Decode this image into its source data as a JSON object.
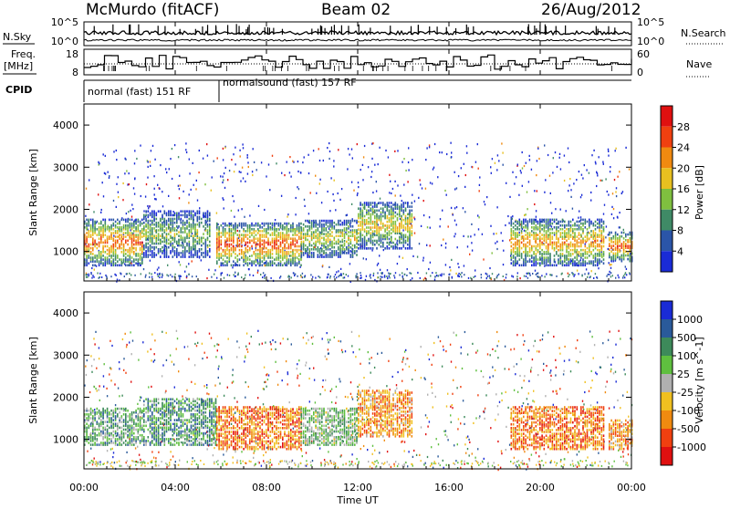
{
  "header": {
    "station": "McMurdo (fitACF)",
    "beam": "Beam 02",
    "date": "26/Aug/2012"
  },
  "top_panels": {
    "nsky_label": "N.Sky",
    "nsky_ticks": [
      "10^5",
      "10^0"
    ],
    "nsearch_label": "N.Search",
    "nsearch_ticks": [
      "10^5",
      "10^0"
    ],
    "freq_label_1": "Freq.",
    "freq_label_2": "[MHz]",
    "freq_ticks": [
      "18",
      "8"
    ],
    "nave_label": "Nave",
    "nave_ticks": [
      "60",
      "0"
    ],
    "cpid_label": "CPID",
    "cpid_segments": [
      "normal (fast) 151 RF",
      "normalsound (fast) 157 RF"
    ]
  },
  "chart_data": [
    {
      "type": "heatmap",
      "title": "",
      "xlabel": "Time UT",
      "ylabel": "Slant Range [km]",
      "x_ticks": [
        "00:00",
        "04:00",
        "08:00",
        "12:00",
        "16:00",
        "20:00",
        "00:00"
      ],
      "y_ticks": [
        "1000",
        "2000",
        "3000",
        "4000"
      ],
      "ylim": [
        300,
        4500
      ],
      "colorbar_label": "Power [dB]",
      "colorbar_ticks": [
        "4",
        "8",
        "12",
        "16",
        "20",
        "24",
        "28"
      ],
      "colors": [
        "#1a2bd6",
        "#2b55a8",
        "#3f8a66",
        "#7fbf3f",
        "#e8c020",
        "#f08a10",
        "#f04010",
        "#e01010"
      ],
      "features": [
        {
          "t_start": 0.0,
          "t_end": 2.6,
          "range_start": 700,
          "range_end": 1800,
          "level": 0.8
        },
        {
          "t_start": 2.6,
          "t_end": 5.5,
          "range_start": 900,
          "range_end": 2000,
          "level": 0.45
        },
        {
          "t_start": 5.8,
          "t_end": 9.5,
          "range_start": 700,
          "range_end": 1700,
          "level": 0.85
        },
        {
          "t_start": 9.5,
          "t_end": 12.0,
          "range_start": 900,
          "range_end": 1800,
          "level": 0.55
        },
        {
          "t_start": 12.0,
          "t_end": 14.4,
          "range_start": 1100,
          "range_end": 2200,
          "level": 0.6
        },
        {
          "t_start": 18.7,
          "t_end": 22.8,
          "range_start": 700,
          "range_end": 1800,
          "level": 0.7
        },
        {
          "t_start": 23.0,
          "t_end": 24.0,
          "range_start": 800,
          "range_end": 1500,
          "level": 0.8
        }
      ]
    },
    {
      "type": "heatmap",
      "title": "",
      "xlabel": "Time UT",
      "ylabel": "Slant Range [km]",
      "x_ticks": [
        "00:00",
        "04:00",
        "08:00",
        "12:00",
        "16:00",
        "20:00",
        "00:00"
      ],
      "y_ticks": [
        "1000",
        "2000",
        "3000",
        "4000"
      ],
      "ylim": [
        300,
        4500
      ],
      "colorbar_label": "Velocity [m s^-1]",
      "colorbar_ticks": [
        "1000",
        "500",
        "100",
        "25",
        "-25",
        "-100",
        "-500",
        "-1000"
      ],
      "colors": [
        "#1a2bd6",
        "#2a5a9a",
        "#3d8a5a",
        "#5fbf3f",
        "#b0b0b0",
        "#f0c020",
        "#f08a10",
        "#f04010",
        "#e01010"
      ],
      "features": [
        {
          "t_start": 0.0,
          "t_end": 2.6,
          "range_start": 900,
          "range_end": 1800,
          "level": 0.35
        },
        {
          "t_start": 2.6,
          "t_end": 5.8,
          "range_start": 900,
          "range_end": 2000,
          "level": 0.3
        },
        {
          "t_start": 5.8,
          "t_end": 9.5,
          "range_start": 800,
          "range_end": 1800,
          "level": 0.75
        },
        {
          "t_start": 9.5,
          "t_end": 12.0,
          "range_start": 900,
          "range_end": 1800,
          "level": 0.4
        },
        {
          "t_start": 12.0,
          "t_end": 14.4,
          "range_start": 1100,
          "range_end": 2200,
          "level": 0.7
        },
        {
          "t_start": 18.7,
          "t_end": 22.8,
          "range_start": 800,
          "range_end": 1800,
          "level": 0.75
        },
        {
          "t_start": 23.0,
          "t_end": 24.0,
          "range_start": 800,
          "range_end": 1500,
          "level": 0.7
        }
      ]
    }
  ]
}
